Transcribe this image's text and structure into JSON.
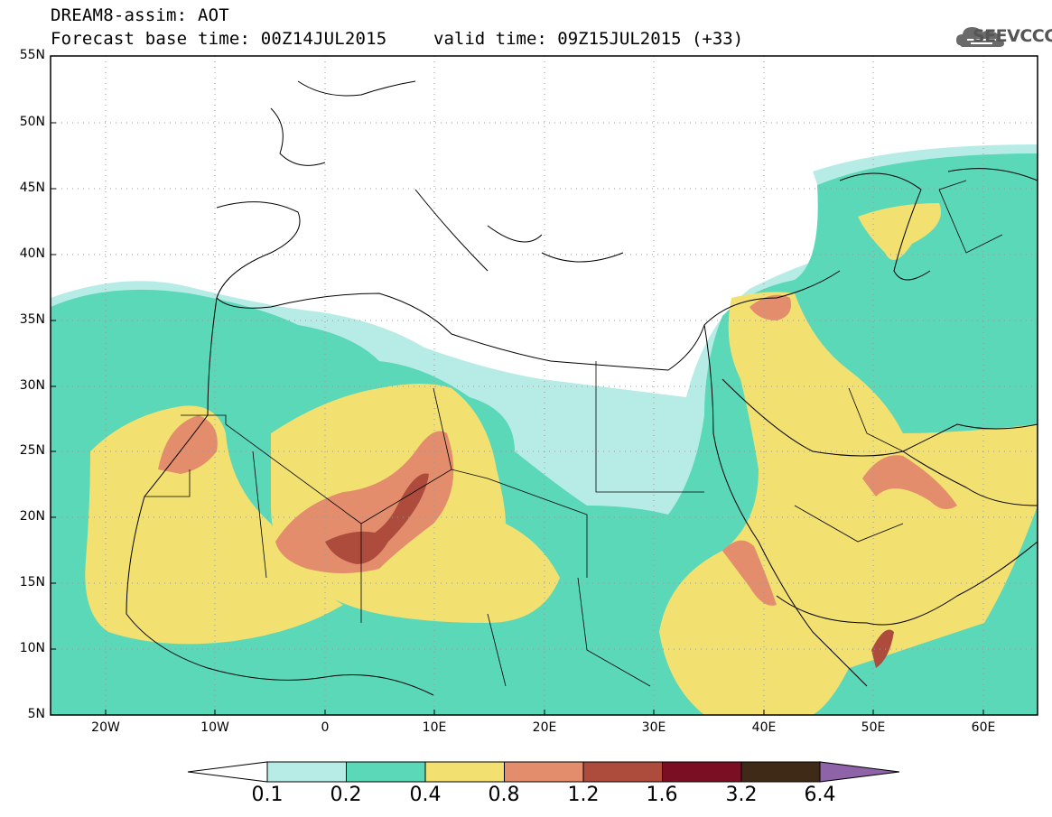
{
  "header": {
    "line1": "DREAM8-assim: AOT",
    "line2": "Forecast base time: 00Z14JUL2015",
    "valid": "valid time: 09Z15JUL2015 (+33)",
    "logo": "SEEVCCC"
  },
  "axes": {
    "lat_labels": [
      "55N",
      "50N",
      "45N",
      "40N",
      "35N",
      "30N",
      "25N",
      "20N",
      "15N",
      "10N",
      "5N"
    ],
    "lon_labels": [
      "20W",
      "10W",
      "0",
      "10E",
      "20E",
      "30E",
      "40E",
      "50E",
      "60E"
    ]
  },
  "legend": {
    "levels": [
      "0.1",
      "0.2",
      "0.4",
      "0.8",
      "1.2",
      "1.6",
      "3.2",
      "6.4"
    ],
    "colors": [
      "#b7ece6",
      "#5ad8b8",
      "#f2e071",
      "#e38d6c",
      "#ad4b3d",
      "#7a0f24",
      "#3e2a17",
      "#8e63a8"
    ]
  }
}
